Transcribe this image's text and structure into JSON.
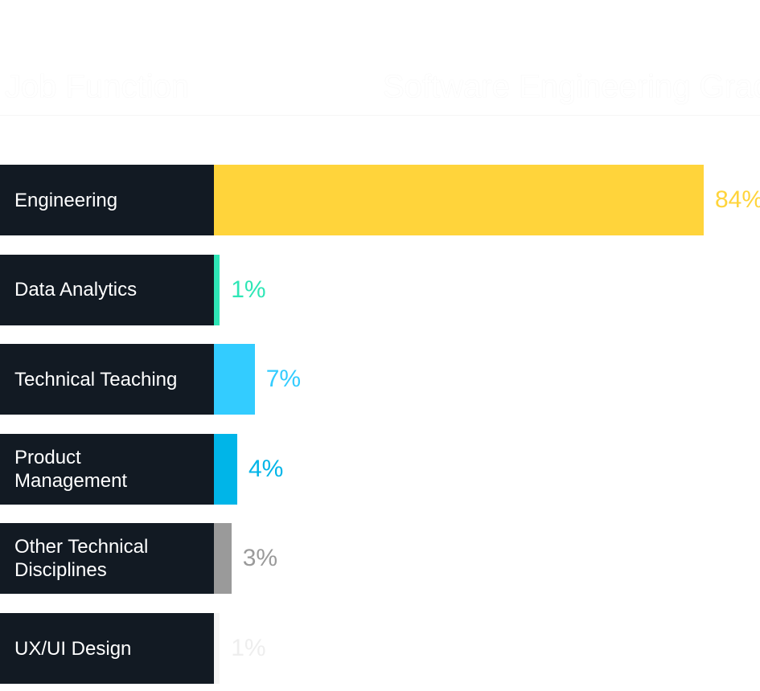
{
  "chart_data": {
    "type": "bar",
    "orientation": "horizontal",
    "column_headers": [
      "Job Function",
      "Software Engineering Grads"
    ],
    "categories": [
      "Engineering",
      "Data Analytics",
      "Technical Teaching",
      "Product Management",
      "Other Technical Disciplines",
      "UX/UI Design"
    ],
    "values": [
      84,
      1,
      7,
      4,
      3,
      1
    ],
    "value_labels": [
      "84%",
      "1%",
      "7%",
      "4%",
      "3%",
      "1%"
    ],
    "colors": [
      "#ffd43b",
      "#2ee6b6",
      "#33ccff",
      "#00b5e8",
      "#9a9a9a",
      "#f4f4f4"
    ],
    "label_background": "#121a23",
    "xlim": [
      0,
      84
    ]
  }
}
